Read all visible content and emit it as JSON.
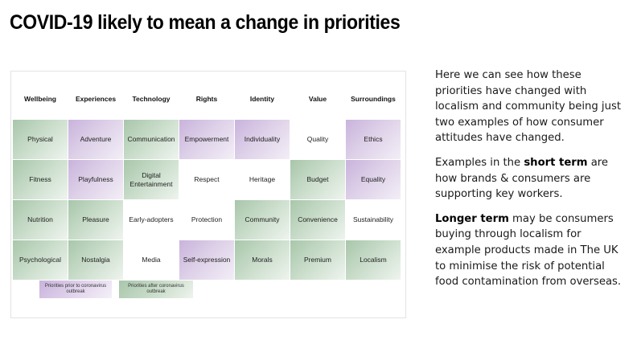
{
  "title": "COVID-19 likely to mean a change in priorities",
  "table": {
    "headers": [
      "Wellbeing",
      "Experiences",
      "Technology",
      "Rights",
      "Identity",
      "Value",
      "Surroundings"
    ],
    "rows": [
      [
        {
          "text": "Physical",
          "kind": "green"
        },
        {
          "text": "Adventure",
          "kind": "purple"
        },
        {
          "text": "Communication",
          "kind": "green"
        },
        {
          "text": "Empowerment",
          "kind": "purple"
        },
        {
          "text": "Individuality",
          "kind": "purple"
        },
        {
          "text": "Quality",
          "kind": "white"
        },
        {
          "text": "Ethics",
          "kind": "purple"
        }
      ],
      [
        {
          "text": "Fitness",
          "kind": "green"
        },
        {
          "text": "Playfulness",
          "kind": "purple"
        },
        {
          "text": "Digital Entertainment",
          "kind": "green"
        },
        {
          "text": "Respect",
          "kind": "white"
        },
        {
          "text": "Heritage",
          "kind": "white"
        },
        {
          "text": "Budget",
          "kind": "green"
        },
        {
          "text": "Equality",
          "kind": "purple"
        }
      ],
      [
        {
          "text": "Nutrition",
          "kind": "green"
        },
        {
          "text": "Pleasure",
          "kind": "green"
        },
        {
          "text": "Early-adopters",
          "kind": "white"
        },
        {
          "text": "Protection",
          "kind": "white"
        },
        {
          "text": "Community",
          "kind": "green"
        },
        {
          "text": "Convenience",
          "kind": "green"
        },
        {
          "text": "Sustainability",
          "kind": "white"
        }
      ],
      [
        {
          "text": "Psychological",
          "kind": "green"
        },
        {
          "text": "Nostalgia",
          "kind": "green"
        },
        {
          "text": "Media",
          "kind": "white"
        },
        {
          "text": "Self-expression",
          "kind": "purple"
        },
        {
          "text": "Morals",
          "kind": "green"
        },
        {
          "text": "Premium",
          "kind": "green"
        },
        {
          "text": "Localism",
          "kind": "green"
        }
      ]
    ]
  },
  "legend": {
    "before": "Priorities prior to coronavirus outbreak",
    "after": "Priorities after coronavirus outbreak"
  },
  "side_text": {
    "p1": "Here we can see how these priorities have changed with localism and community being just two examples of how consumer attitudes have changed.",
    "p2_before": "Examples in the ",
    "p2_bold": "short term",
    "p2_after": " are how brands & consumers are supporting key workers.",
    "p3_bold": "Longer term",
    "p3_after": " may be consumers buying through localism for example products made in The UK to minimise the risk of potential food contamination from overseas."
  },
  "colors": {
    "before_purple": "#c9b3dc",
    "after_green": "#a8c6aa"
  }
}
